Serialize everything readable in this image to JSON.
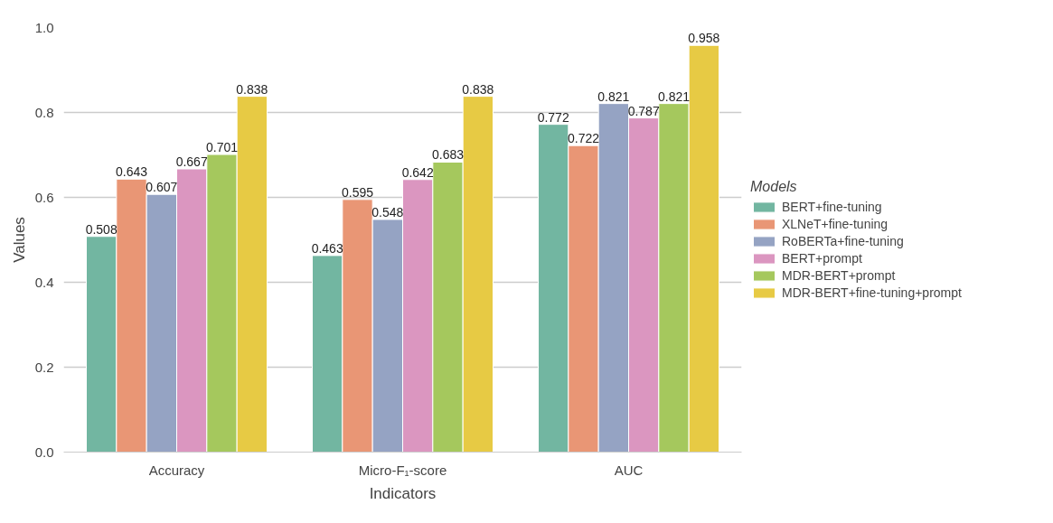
{
  "chart_data": {
    "type": "bar",
    "xlabel": "Indicators",
    "ylabel": "Values",
    "legend_title": "Models",
    "categories": [
      "Accuracy",
      "Micro-F₁-score",
      "AUC"
    ],
    "series": [
      {
        "name": "BERT+fine-tuning",
        "color": "#72b6a1",
        "values": [
          0.508,
          0.463,
          0.772
        ]
      },
      {
        "name": "XLNeT+fine-tuning",
        "color": "#e99675",
        "values": [
          0.643,
          0.595,
          0.722
        ]
      },
      {
        "name": "RoBERTa+fine-tuning",
        "color": "#95a3c3",
        "values": [
          0.607,
          0.548,
          0.821
        ]
      },
      {
        "name": "BERT+prompt",
        "color": "#db96c0",
        "values": [
          0.667,
          0.642,
          0.787
        ]
      },
      {
        "name": "MDR-BERT+prompt",
        "color": "#a5c85d",
        "values": [
          0.701,
          0.683,
          0.821
        ]
      },
      {
        "name": "MDR-BERT+fine-tuning+prompt",
        "color": "#e7ca44",
        "values": [
          0.838,
          0.838,
          0.958
        ]
      }
    ],
    "ylim": [
      0,
      1.0
    ],
    "yticks": [
      {
        "value": 0,
        "label": "0.0"
      },
      {
        "value": 0.2,
        "label": "0.2"
      },
      {
        "value": 0.4,
        "label": "0.4"
      },
      {
        "value": 0.6,
        "label": "0.6"
      },
      {
        "value": 0.8,
        "label": "0.8"
      },
      {
        "value": 1.0,
        "label": "1.0"
      }
    ],
    "grid": "y",
    "legend": "right",
    "data_labels": true
  }
}
